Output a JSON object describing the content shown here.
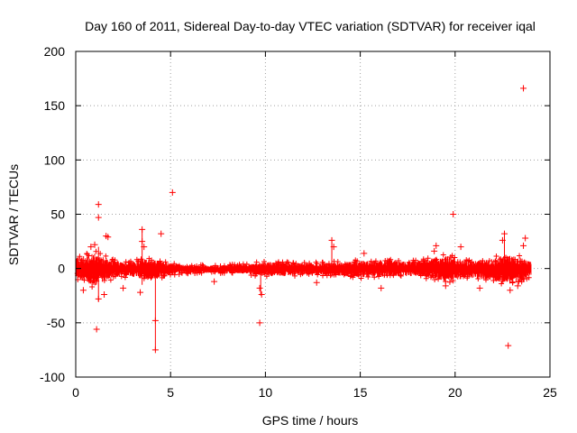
{
  "chart_data": {
    "type": "scatter",
    "title": "Day 160 of 2011, Sidereal Day-to-day VTEC variation (SDTVAR) for receiver iqal",
    "xlabel": "GPS time / hours",
    "ylabel": "SDTVAR / TECUs",
    "xlim": [
      0,
      25
    ],
    "ylim": [
      -100,
      200
    ],
    "xticks": [
      0,
      5,
      10,
      15,
      20,
      25
    ],
    "yticks": [
      -100,
      -50,
      0,
      50,
      100,
      150,
      200
    ],
    "grid": true,
    "marker": "+",
    "color": "#ff0000",
    "x_range_hours": [
      0,
      24
    ],
    "band_envelope": {
      "hours": [
        0,
        0.5,
        1,
        1.5,
        2,
        2.5,
        3,
        3.5,
        4,
        4.5,
        5,
        5.5,
        6,
        7,
        8,
        9,
        10,
        11,
        12,
        13,
        14,
        15,
        16,
        17,
        18,
        19,
        19.5,
        20,
        20.5,
        21,
        22,
        22.5,
        23,
        23.5,
        24
      ],
      "upper": [
        10,
        12,
        14,
        11,
        8,
        6,
        7,
        9,
        8,
        7,
        5,
        4,
        3,
        3,
        3,
        4,
        6,
        6,
        5,
        5,
        6,
        7,
        8,
        7,
        7,
        10,
        12,
        10,
        8,
        7,
        9,
        12,
        12,
        10,
        6
      ],
      "lower": [
        -10,
        -12,
        -16,
        -12,
        -8,
        -7,
        -8,
        -10,
        -10,
        -8,
        -6,
        -5,
        -4,
        -4,
        -4,
        -5,
        -7,
        -7,
        -6,
        -6,
        -7,
        -8,
        -8,
        -7,
        -7,
        -10,
        -12,
        -11,
        -9,
        -9,
        -11,
        -14,
        -14,
        -12,
        -7
      ]
    },
    "outliers": [
      {
        "x": 0.8,
        "y": 20
      },
      {
        "x": 1.0,
        "y": 22
      },
      {
        "x": 1.1,
        "y": -56
      },
      {
        "x": 1.2,
        "y": 59
      },
      {
        "x": 1.2,
        "y": 47
      },
      {
        "x": 1.2,
        "y": -28
      },
      {
        "x": 1.6,
        "y": 30
      },
      {
        "x": 1.7,
        "y": 29
      },
      {
        "x": 3.5,
        "y": 36
      },
      {
        "x": 3.5,
        "y": 25
      },
      {
        "x": 3.6,
        "y": 20
      },
      {
        "x": 4.2,
        "y": -48
      },
      {
        "x": 4.2,
        "y": -75
      },
      {
        "x": 4.5,
        "y": 32
      },
      {
        "x": 5.1,
        "y": 70
      },
      {
        "x": 9.7,
        "y": -50
      },
      {
        "x": 9.7,
        "y": -18
      },
      {
        "x": 9.8,
        "y": -24
      },
      {
        "x": 13.5,
        "y": 26
      },
      {
        "x": 13.6,
        "y": 20
      },
      {
        "x": 16.1,
        "y": -18
      },
      {
        "x": 19.0,
        "y": 21
      },
      {
        "x": 19.9,
        "y": 50
      },
      {
        "x": 20.3,
        "y": 20
      },
      {
        "x": 22.5,
        "y": 26
      },
      {
        "x": 22.6,
        "y": 32
      },
      {
        "x": 22.8,
        "y": -71
      },
      {
        "x": 23.6,
        "y": 166
      },
      {
        "x": 23.7,
        "y": 28
      },
      {
        "x": 23.6,
        "y": 21
      },
      {
        "x": 0.4,
        "y": -20
      },
      {
        "x": 1.5,
        "y": -24
      },
      {
        "x": 2.5,
        "y": -18
      },
      {
        "x": 3.4,
        "y": -22
      },
      {
        "x": 19.5,
        "y": -16
      },
      {
        "x": 22.9,
        "y": -20
      },
      {
        "x": 23.3,
        "y": -16
      },
      {
        "x": 21.3,
        "y": -18
      },
      {
        "x": 7.3,
        "y": -12
      },
      {
        "x": 15.2,
        "y": 14
      },
      {
        "x": 18.9,
        "y": 16
      },
      {
        "x": 12.7,
        "y": -13
      }
    ],
    "vertical_spikes": [
      {
        "x": 1.2,
        "y1": -30,
        "y2": 20
      },
      {
        "x": 3.5,
        "y1": -15,
        "y2": 36
      },
      {
        "x": 4.2,
        "y1": -75,
        "y2": 5
      },
      {
        "x": 9.75,
        "y1": -25,
        "y2": 5
      },
      {
        "x": 13.5,
        "y1": -8,
        "y2": 26
      },
      {
        "x": 22.6,
        "y1": -10,
        "y2": 32
      }
    ]
  }
}
